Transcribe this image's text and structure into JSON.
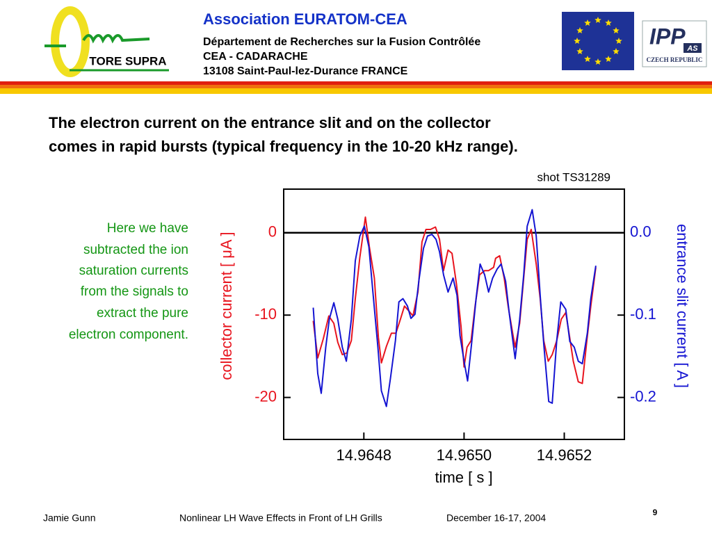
{
  "header": {
    "logo_text": "TORE SUPRA",
    "association": "Association  EURATOM-CEA",
    "lines": [
      "Département de Recherches sur la Fusion Contrôlée",
      "CEA - CADARACHE",
      "13108 Saint-Paul-lez-Durance   FRANCE"
    ],
    "ipp": "IPP",
    "ipp_sub": "AS",
    "ipp_country": "CZECH REPUBLIC"
  },
  "slide": {
    "title": [
      "The electron current on the entrance slit and on the collector",
      "comes in rapid bursts (typical frequency in the 10-20 kHz range)."
    ],
    "note": [
      "Here we have",
      "subtracted the ion",
      "saturation currents",
      "from the signals to",
      "extract the pure",
      "electron component."
    ]
  },
  "chart_data": {
    "type": "line",
    "annotation": "shot TS31289",
    "xlabel": "time  [ s ]",
    "ylabel": "collector current  [ μA ]",
    "y2label": "entrance slit current [ A ]",
    "xlim": [
      14.96464,
      14.96532
    ],
    "xticks": [
      14.9648,
      {
        "value": 14.965,
        "label": "14.9650"
      },
      14.9652
    ],
    "ylim": [
      -25.1,
      5.3
    ],
    "yticks": [
      0,
      -10,
      -20
    ],
    "y2lim": [
      -0.251,
      0.053
    ],
    "y2ticks": [
      {
        "value": 0,
        "label": "0.0"
      },
      -0.1,
      -0.2
    ],
    "series": [
      {
        "color": "#e8141e",
        "axis": "y",
        "x": [
          14.964699,
          14.964708,
          14.964719,
          14.96473,
          14.96474,
          14.964748,
          14.964757,
          14.964766,
          14.964775,
          14.964783,
          14.964792,
          14.964803,
          14.964811,
          14.964821,
          14.964829,
          14.964835,
          14.964845,
          14.964855,
          14.964864,
          14.964873,
          14.964881,
          14.96489,
          14.964898,
          14.964908,
          14.964916,
          14.964924,
          14.964933,
          14.964943,
          14.964951,
          14.964959,
          14.964968,
          14.964976,
          14.964985,
          14.964994,
          14.965,
          14.965006,
          14.965014,
          14.965022,
          14.965031,
          14.965041,
          14.965049,
          14.965059,
          14.965063,
          14.965071,
          14.96508,
          14.965088,
          14.965097,
          14.965102,
          14.965111,
          14.965119,
          14.965126,
          14.965134,
          14.965144,
          14.965152,
          14.965159,
          14.965168,
          14.965176,
          14.965185,
          14.965194,
          14.965203,
          14.965211,
          14.965218,
          14.965228,
          14.965236,
          14.965245,
          14.965253,
          14.965263
        ],
        "values": [
          -10.7,
          -15.2,
          -12.9,
          -10.1,
          -11.0,
          -13.3,
          -14.8,
          -14.6,
          -13.1,
          -8.0,
          -3.0,
          1.9,
          -1.7,
          -5.5,
          -12.7,
          -15.8,
          -13.8,
          -12.2,
          -12.2,
          -10.5,
          -8.9,
          -9.5,
          -10.1,
          -7.2,
          -1.1,
          0.4,
          0.4,
          0.7,
          -0.8,
          -4.6,
          -2.1,
          -2.5,
          -6.3,
          -11.4,
          -16.3,
          -13.9,
          -13.1,
          -8.9,
          -5.1,
          -4.6,
          -4.6,
          -4.2,
          -3.1,
          -2.8,
          -5.5,
          -8.9,
          -12.2,
          -13.9,
          -11.0,
          -5.5,
          -0.8,
          0.4,
          -3.8,
          -8.0,
          -13.1,
          -15.6,
          -14.8,
          -13.1,
          -10.5,
          -9.7,
          -12.8,
          -15.6,
          -18.1,
          -18.3,
          -13.1,
          -8.9,
          -4.2
        ]
      },
      {
        "color": "#1414d2",
        "axis": "y2",
        "x": [
          14.964699,
          14.964708,
          14.964715,
          14.964724,
          14.964731,
          14.96474,
          14.964748,
          14.964757,
          14.964765,
          14.964775,
          14.964783,
          14.964792,
          14.964801,
          14.96481,
          14.964818,
          14.964828,
          14.964835,
          14.964845,
          14.964853,
          14.964863,
          14.96487,
          14.964878,
          14.964887,
          14.964894,
          14.964902,
          14.96491,
          14.964919,
          14.964927,
          14.964936,
          14.964944,
          14.964951,
          14.964959,
          14.964968,
          14.964978,
          14.964986,
          14.964992,
          14.965,
          14.965007,
          14.965015,
          14.965024,
          14.965032,
          14.965041,
          14.965049,
          14.965057,
          14.965066,
          14.965074,
          14.965083,
          14.96509,
          14.965102,
          14.965111,
          14.965119,
          14.965126,
          14.965136,
          14.965144,
          14.965152,
          14.965159,
          14.965169,
          14.965176,
          14.965185,
          14.965193,
          14.965203,
          14.965211,
          14.96522,
          14.965228,
          14.965236,
          14.965246,
          14.965253,
          14.965263
        ],
        "values": [
          -0.091,
          -0.171,
          -0.195,
          -0.139,
          -0.105,
          -0.085,
          -0.105,
          -0.139,
          -0.156,
          -0.105,
          -0.034,
          -0.004,
          0.008,
          -0.017,
          -0.072,
          -0.139,
          -0.192,
          -0.211,
          -0.177,
          -0.131,
          -0.084,
          -0.08,
          -0.089,
          -0.104,
          -0.099,
          -0.057,
          -0.019,
          -0.004,
          -0.002,
          -0.008,
          -0.023,
          -0.051,
          -0.072,
          -0.055,
          -0.076,
          -0.125,
          -0.156,
          -0.18,
          -0.135,
          -0.08,
          -0.038,
          -0.051,
          -0.072,
          -0.055,
          -0.044,
          -0.038,
          -0.059,
          -0.097,
          -0.153,
          -0.105,
          -0.051,
          0.008,
          0.028,
          -0.004,
          -0.076,
          -0.135,
          -0.205,
          -0.207,
          -0.131,
          -0.084,
          -0.093,
          -0.132,
          -0.139,
          -0.156,
          -0.159,
          -0.122,
          -0.08,
          -0.04
        ]
      }
    ]
  },
  "footer": {
    "author": "Jamie Gunn",
    "talk": "Nonlinear LH Wave Effects in Front of LH Grills",
    "date": "December 16-17, 2004",
    "page": "9"
  }
}
